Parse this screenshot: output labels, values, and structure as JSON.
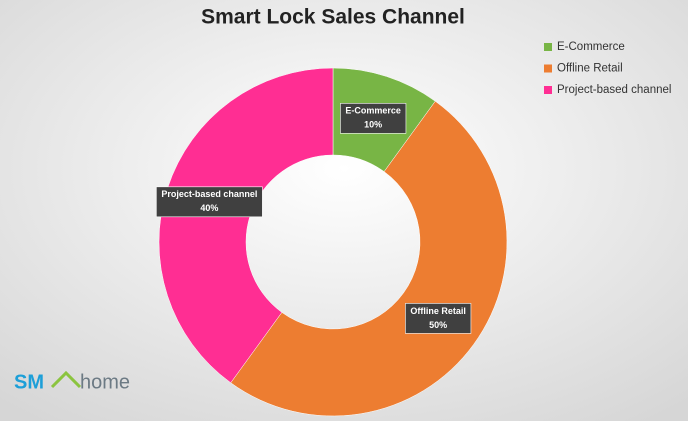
{
  "chart_data": {
    "type": "donut",
    "title": "Smart Lock Sales Channel",
    "categories": [
      "E-Commerce",
      "Offline Retail",
      "Project-based channel"
    ],
    "values": [
      10,
      50,
      40
    ],
    "value_labels": [
      "10%",
      "50%",
      "40%"
    ],
    "colors": [
      "#78b545",
      "#ed7d31",
      "#ff2e93"
    ],
    "legend": "top-right"
  },
  "logo": {
    "left": "SM",
    "right": "home"
  }
}
